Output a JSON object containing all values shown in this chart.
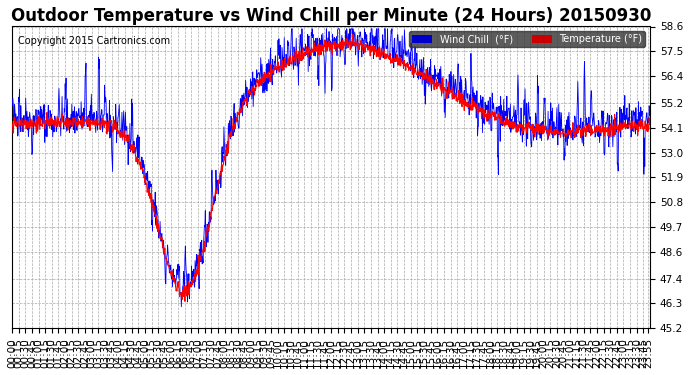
{
  "title": "Outdoor Temperature vs Wind Chill per Minute (24 Hours) 20150930",
  "copyright": "Copyright 2015 Cartronics.com",
  "ylim": [
    45.2,
    58.6
  ],
  "yticks": [
    45.2,
    46.3,
    47.4,
    48.6,
    49.7,
    50.8,
    51.9,
    53.0,
    54.1,
    55.2,
    56.4,
    57.5,
    58.6
  ],
  "temp_color": "#0000ff",
  "wind_color": "#ff0000",
  "bg_color": "#ffffff",
  "grid_color": "#aaaaaa",
  "legend_wind_bg": "#0000cc",
  "legend_temp_bg": "#cc0000",
  "title_fontsize": 12,
  "tick_fontsize": 7.5
}
